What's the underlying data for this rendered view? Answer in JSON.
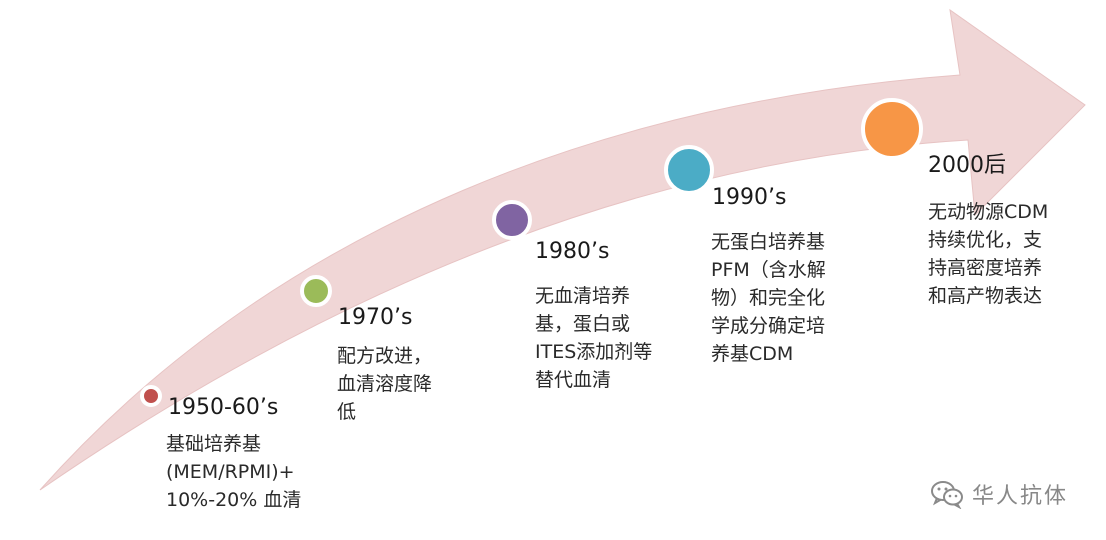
{
  "diagram": {
    "colors": {
      "arrow_fill": "#f0d6d6",
      "arrow_stroke": "#e7c3c3",
      "dot_ring": "#ffffff"
    },
    "milestones": [
      {
        "era": "1950-60’s",
        "dot_color": "#c0504d",
        "lines": [
          "基础培养基",
          "(MEM/RPMI)+",
          "10%-20% 血清"
        ]
      },
      {
        "era": "1970’s",
        "dot_color": "#9bbb59",
        "lines": [
          "配方改进，",
          "血清溶度降",
          "低"
        ]
      },
      {
        "era": "1980’s",
        "dot_color": "#8064a2",
        "lines": [
          "无血清培养",
          "基，蛋白或",
          "ITES添加剂等",
          "替代血清"
        ]
      },
      {
        "era": "1990’s",
        "dot_color": "#4bacc6",
        "lines": [
          "无蛋白培养基",
          "PFM（含水解",
          "物）和完全化",
          "学成分确定培",
          "养基CDM"
        ]
      },
      {
        "era": "2000后",
        "dot_color": "#f79646",
        "lines": [
          "无动物源CDM",
          "持续优化，支",
          "持高密度培养",
          "和高产物表达"
        ]
      }
    ],
    "watermark": {
      "icon": "wechat-icon",
      "text": "华人抗体"
    }
  }
}
